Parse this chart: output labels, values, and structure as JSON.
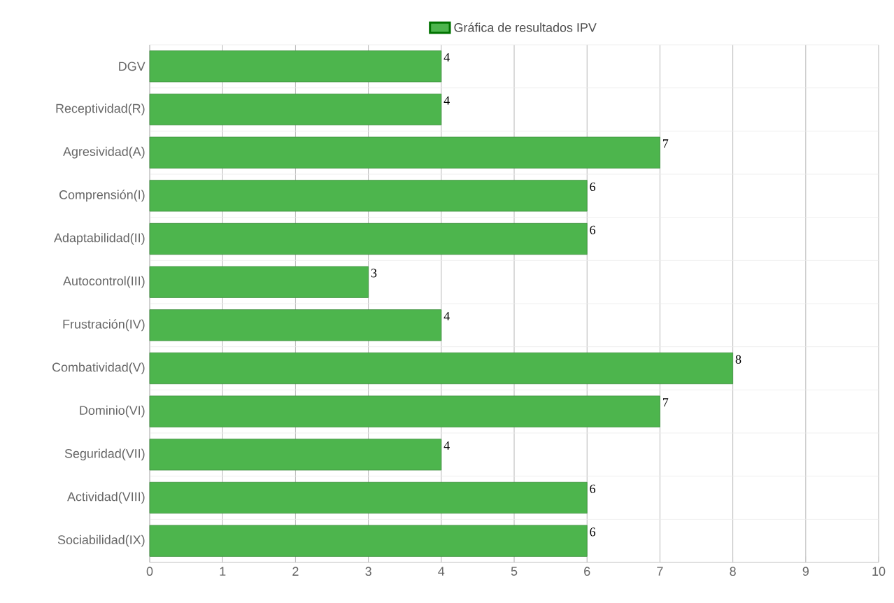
{
  "chart_data": {
    "type": "bar",
    "orientation": "horizontal",
    "categories": [
      "DGV",
      "Receptividad(R)",
      "Agresividad(A)",
      "Comprensión(I)",
      "Adaptabilidad(II)",
      "Autocontrol(III)",
      "Frustración(IV)",
      "Combatividad(V)",
      "Dominio(VI)",
      "Seguridad(VII)",
      "Actividad(VIII)",
      "Sociabilidad(IX)"
    ],
    "series": [
      {
        "name": "Gráfica de resultados IPV",
        "color": "#4db54d",
        "values": [
          4,
          4,
          7,
          6,
          6,
          3,
          4,
          8,
          7,
          4,
          6,
          6
        ]
      }
    ],
    "xlim": [
      0,
      10
    ],
    "xticks": [
      0,
      1,
      2,
      3,
      4,
      5,
      6,
      7,
      8,
      9,
      10
    ],
    "grid": true,
    "legend": "top",
    "data_labels": true
  }
}
